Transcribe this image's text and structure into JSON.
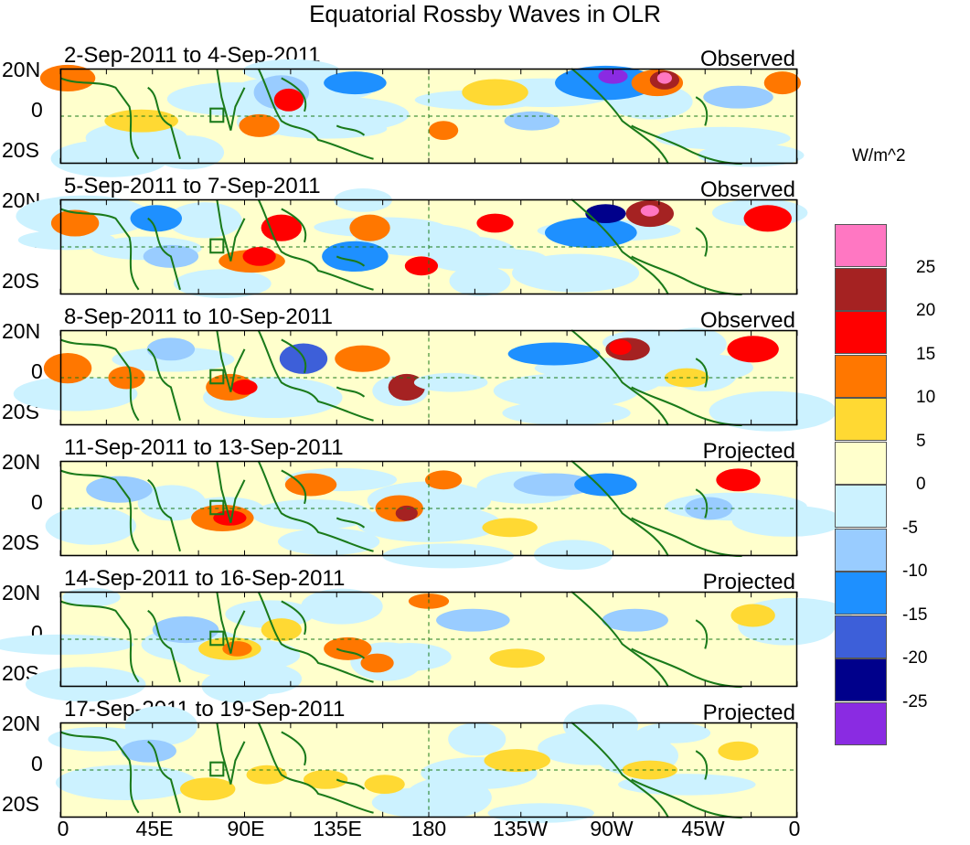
{
  "title": "Equatorial Rossby Waves in OLR",
  "panels": [
    {
      "date_range": "2-Sep-2011 to 4-Sep-2011",
      "status": "Observed"
    },
    {
      "date_range": "5-Sep-2011 to 7-Sep-2011",
      "status": "Observed"
    },
    {
      "date_range": "8-Sep-2011 to 10-Sep-2011",
      "status": "Observed"
    },
    {
      "date_range": "11-Sep-2011 to 13-Sep-2011",
      "status": "Projected"
    },
    {
      "date_range": "14-Sep-2011 to 16-Sep-2011",
      "status": "Projected"
    },
    {
      "date_range": "17-Sep-2011 to 19-Sep-2011",
      "status": "Projected"
    }
  ],
  "lat_labels": [
    "20N",
    "0",
    "20S"
  ],
  "lon_labels": [
    "0",
    "45E",
    "90E",
    "135E",
    "180",
    "135W",
    "90W",
    "45W",
    "0"
  ],
  "legend": {
    "units": "W/m^2",
    "ticks": [
      "25",
      "20",
      "15",
      "10",
      "5",
      "0",
      "-5",
      "-10",
      "-15",
      "-20",
      "-25"
    ],
    "colors": [
      "#ff77c2",
      "#a52222",
      "#ff0000",
      "#ff7700",
      "#ffd933",
      "#ffffcc",
      "#ccf2ff",
      "#99ccff",
      "#1e90ff",
      "#3d5fd9",
      "#00008b",
      "#8a2be2"
    ]
  }
}
